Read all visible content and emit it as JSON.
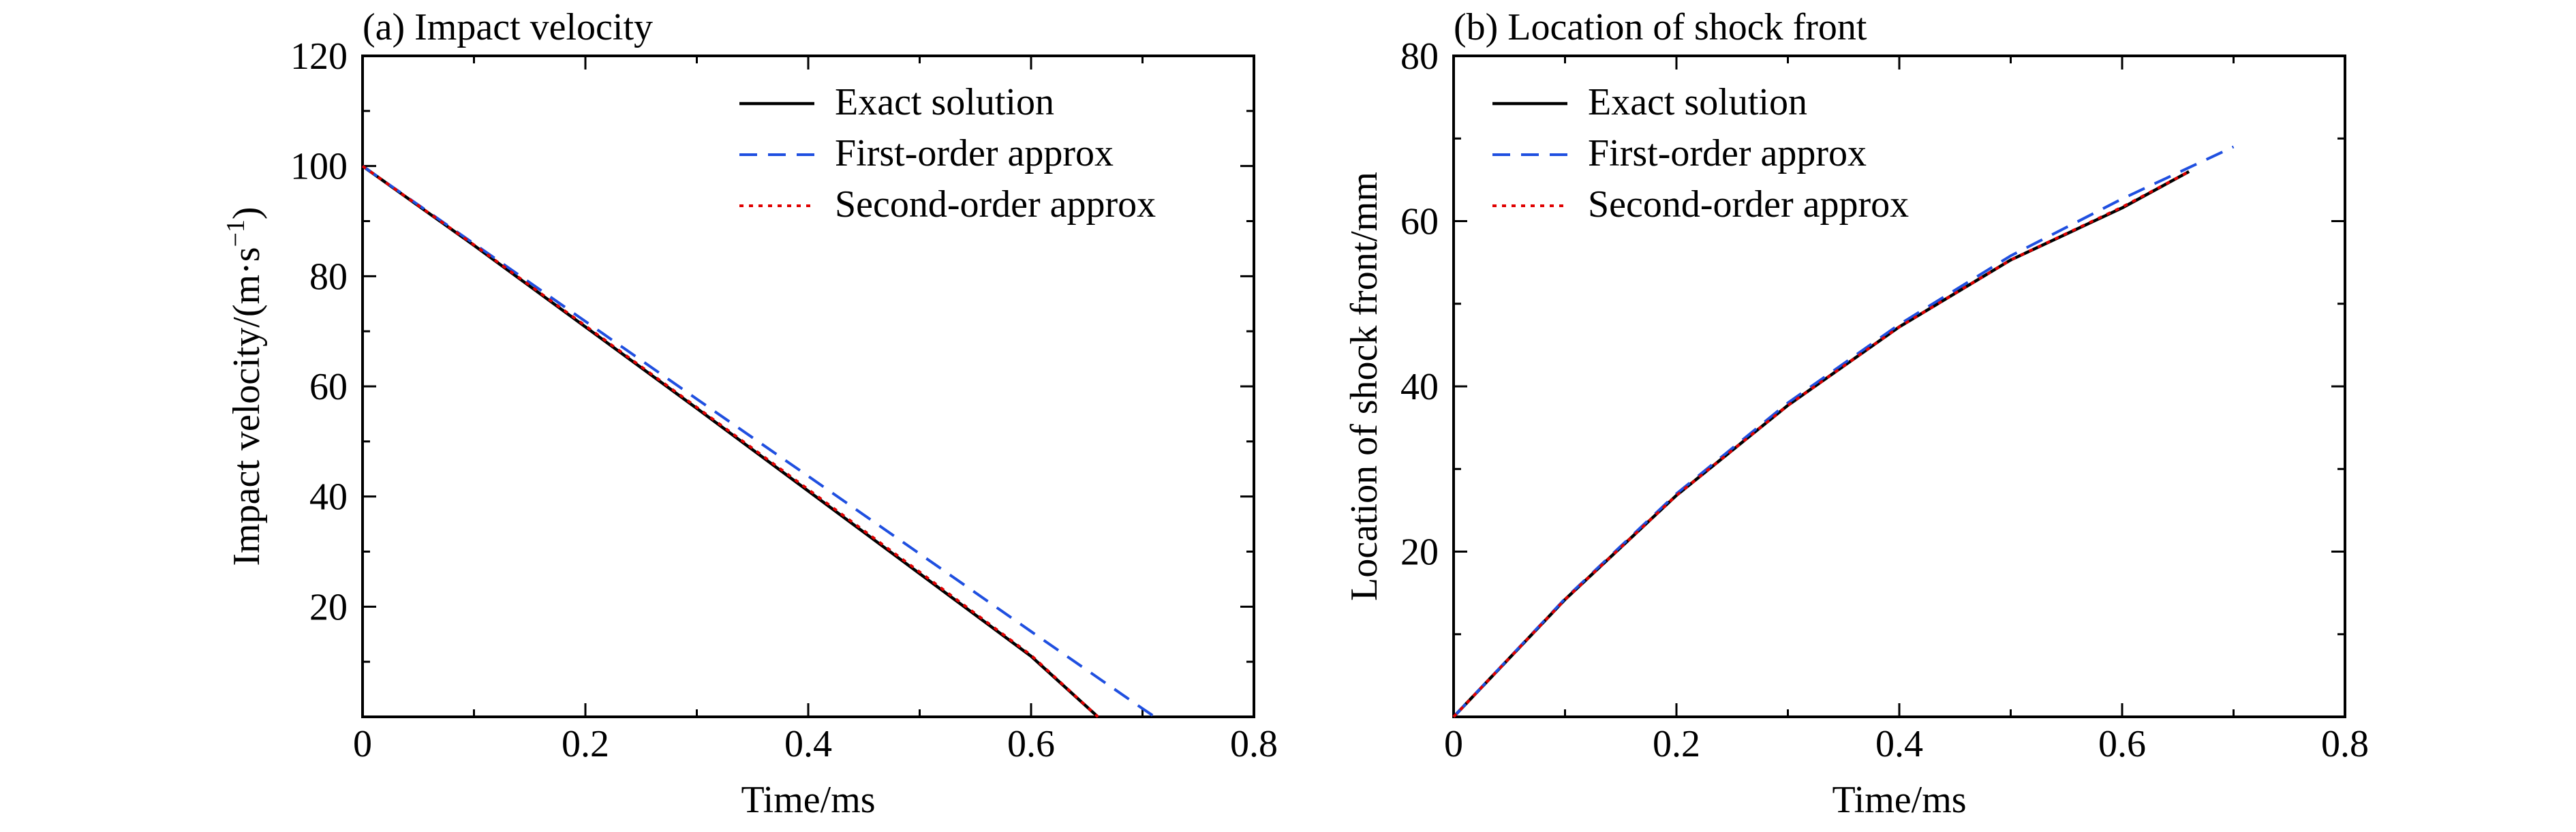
{
  "colors": {
    "exact": "#000000",
    "first_order": "#1f4fe0",
    "second_order": "#e00000"
  },
  "chart_data": [
    {
      "type": "line",
      "title": "(a) Impact velocity",
      "xlabel": "Time/ms",
      "ylabel": "Impact velocity/(m·s",
      "ylabel_sup": "−1",
      "ylabel_tail": ")",
      "xlim": [
        0,
        0.8
      ],
      "ylim": [
        0,
        120
      ],
      "xticks": [
        0,
        0.2,
        0.4,
        0.6,
        0.8
      ],
      "xtick_labels": [
        "0",
        "0.2",
        "0.4",
        "0.6",
        "0.8"
      ],
      "yticks": [
        20,
        40,
        60,
        80,
        100,
        120
      ],
      "ytick_labels": [
        "20",
        "40",
        "60",
        "80",
        "100",
        "120"
      ],
      "legend_position": "top-right",
      "grid": false,
      "series": [
        {
          "name": "Exact solution",
          "style": "solid",
          "x": [
            0,
            0.1,
            0.2,
            0.3,
            0.4,
            0.5,
            0.6,
            0.66
          ],
          "y": [
            100,
            85.6,
            70.8,
            56,
            41,
            26,
            11,
            0
          ]
        },
        {
          "name": "First-order approx",
          "style": "dashed",
          "x": [
            0,
            0.1,
            0.2,
            0.3,
            0.4,
            0.5,
            0.6,
            0.7,
            0.711
          ],
          "y": [
            100,
            85.9,
            71.8,
            57.7,
            43.7,
            29.6,
            15.5,
            1.5,
            0
          ]
        },
        {
          "name": "Second-order approx",
          "style": "dotted",
          "x": [
            0,
            0.1,
            0.2,
            0.3,
            0.4,
            0.5,
            0.6,
            0.66
          ],
          "y": [
            100,
            85.7,
            71,
            56.2,
            41.3,
            26.3,
            11.2,
            0
          ]
        }
      ]
    },
    {
      "type": "line",
      "title": "(b) Location of shock front",
      "xlabel": "Time/ms",
      "ylabel": "Location of shock front/mm",
      "xlim": [
        0,
        0.8
      ],
      "ylim": [
        0,
        80
      ],
      "xticks": [
        0,
        0.2,
        0.4,
        0.6,
        0.8
      ],
      "xtick_labels": [
        "0",
        "0.2",
        "0.4",
        "0.6",
        "0.8"
      ],
      "yticks": [
        20,
        40,
        60,
        80
      ],
      "ytick_labels": [
        "20",
        "40",
        "60",
        "80"
      ],
      "legend_position": "top-left",
      "grid": false,
      "series": [
        {
          "name": "Exact solution",
          "style": "solid",
          "x": [
            0,
            0.1,
            0.2,
            0.3,
            0.4,
            0.5,
            0.6,
            0.66
          ],
          "y": [
            0,
            14.2,
            26.8,
            37.7,
            47.2,
            55.3,
            61.6,
            66
          ]
        },
        {
          "name": "First-order approx",
          "style": "dashed",
          "x": [
            0,
            0.1,
            0.2,
            0.3,
            0.4,
            0.5,
            0.6,
            0.7
          ],
          "y": [
            0,
            14.3,
            27,
            38,
            47.5,
            55.8,
            62.7,
            69
          ]
        },
        {
          "name": "Second-order approx",
          "style": "dotted",
          "x": [
            0,
            0.1,
            0.2,
            0.3,
            0.4,
            0.5,
            0.6,
            0.66
          ],
          "y": [
            0,
            14.2,
            26.8,
            37.7,
            47.2,
            55.3,
            61.7,
            66
          ]
        }
      ]
    }
  ]
}
